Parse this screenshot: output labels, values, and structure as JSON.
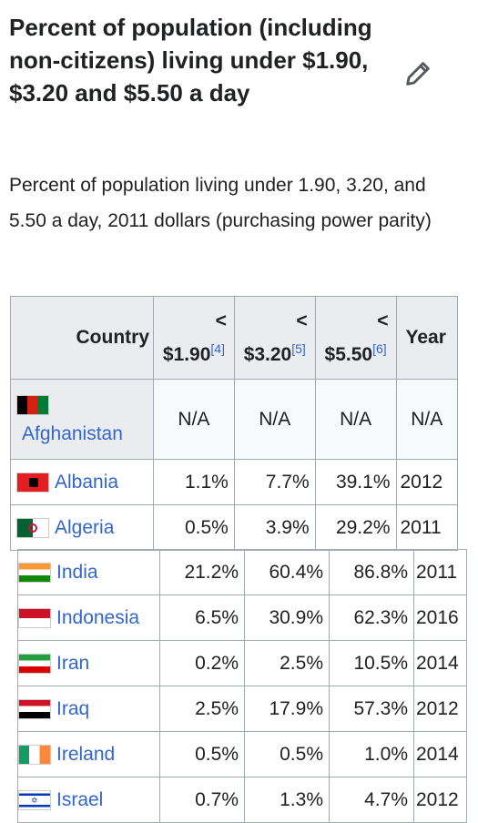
{
  "heading": "Percent of population (including non-citizens) living under $1.90, $3.20 and $5.50 a day",
  "description": "Percent of population living under 1.90, 3.20, and 5.50 a day, 2011 dollars (purchasing power parity)",
  "edit_icon": "pencil-icon",
  "table": {
    "headers": {
      "country": "Country",
      "lt": "<",
      "c1": "$1.90",
      "c1_ref": "[4]",
      "c2": "$3.20",
      "c2_ref": "[5]",
      "c3": "$5.50",
      "c3_ref": "[6]",
      "year": "Year"
    },
    "rows": [
      {
        "country": "Afghanistan",
        "v1": "N/A",
        "v2": "N/A",
        "v3": "N/A",
        "year": "N/A"
      },
      {
        "country": "Albania",
        "v1": "1.1%",
        "v2": "7.7%",
        "v3": "39.1%",
        "year": "2012"
      },
      {
        "country": "Algeria",
        "v1": "0.5%",
        "v2": "3.9%",
        "v3": "29.2%",
        "year": "2011"
      },
      {
        "country": "India",
        "v1": "21.2%",
        "v2": "60.4%",
        "v3": "86.8%",
        "year": "2011"
      },
      {
        "country": "Indonesia",
        "v1": "6.5%",
        "v2": "30.9%",
        "v3": "62.3%",
        "year": "2016"
      },
      {
        "country": "Iran",
        "v1": "0.2%",
        "v2": "2.5%",
        "v3": "10.5%",
        "year": "2014"
      },
      {
        "country": "Iraq",
        "v1": "2.5%",
        "v2": "17.9%",
        "v3": "57.3%",
        "year": "2012"
      },
      {
        "country": "Ireland",
        "v1": "0.5%",
        "v2": "0.5%",
        "v3": "1.0%",
        "year": "2014"
      },
      {
        "country": "Israel",
        "v1": "0.7%",
        "v2": "1.3%",
        "v3": "4.7%",
        "year": "2012"
      }
    ]
  },
  "colors": {
    "link": "#3366cc",
    "header_bg": "#eaecf0",
    "border": "#a2a9b1"
  }
}
